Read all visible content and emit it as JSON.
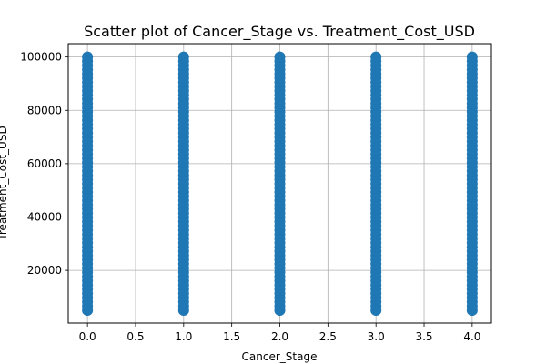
{
  "chart_data": {
    "type": "scatter",
    "title": "Scatter plot of Cancer_Stage vs. Treatment_Cost_USD",
    "xlabel": "Cancer_Stage",
    "ylabel": "Treatment_Cost_USD",
    "xlim": [
      -0.2,
      4.2
    ],
    "ylim": [
      245,
      105000
    ],
    "x_ticks": [
      0.0,
      0.5,
      1.0,
      1.5,
      2.0,
      2.5,
      3.0,
      3.5,
      4.0
    ],
    "x_tick_labels": [
      "0.0",
      "0.5",
      "1.0",
      "1.5",
      "2.0",
      "2.5",
      "3.0",
      "3.5",
      "4.0"
    ],
    "y_ticks": [
      20000,
      40000,
      60000,
      80000,
      100000
    ],
    "y_tick_labels": [
      "20000",
      "40000",
      "60000",
      "80000",
      "100000"
    ],
    "grid": true,
    "series": [
      {
        "color": "#1f77b4",
        "x": [
          0,
          0,
          1,
          1,
          2,
          2,
          3,
          3,
          4,
          4
        ],
        "y": [
          5000,
          100000,
          5000,
          100000,
          5000,
          100000,
          5000,
          100000,
          5000,
          100000
        ]
      }
    ]
  }
}
